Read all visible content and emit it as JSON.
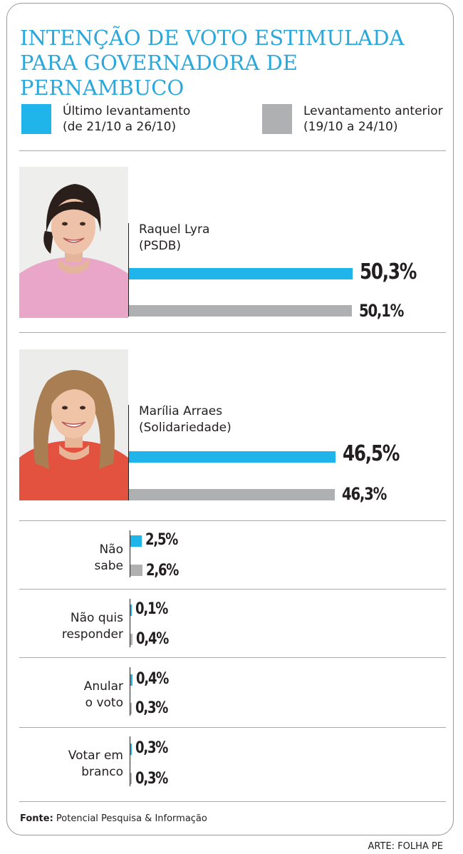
{
  "title": "INTENÇÃO DE VOTO ESTIMULADA PARA GOVERNADORA DE PERNAMBUCO",
  "legend": {
    "current": {
      "line1": "Último levantamento",
      "line2": "(de 21/10 a 26/10)",
      "color": "#1fb4ea"
    },
    "previous": {
      "line1": "Levantamento anterior",
      "line2": "(19/10 a 24/10)",
      "color": "#aeb0b2"
    }
  },
  "chart_data": {
    "type": "bar",
    "title": "INTENÇÃO DE VOTO ESTIMULADA PARA GOVERNADORA DE PERNAMBUCO",
    "unit": "%",
    "series": [
      {
        "name": "Último levantamento (de 21/10 a 26/10)",
        "values": [
          50.3,
          46.5,
          2.5,
          0.1,
          0.4,
          0.3
        ]
      },
      {
        "name": "Levantamento anterior (19/10 a 24/10)",
        "values": [
          50.1,
          46.3,
          2.6,
          0.4,
          0.3,
          0.3
        ]
      }
    ],
    "categories": [
      "Raquel Lyra (PSDB)",
      "Marília Arraes (Solidariedade)",
      "Não sabe",
      "Não quis responder",
      "Anular o voto",
      "Votar em branco"
    ],
    "candidates": [
      {
        "name": "Raquel Lyra",
        "party": "(PSDB)",
        "current": 50.3,
        "previous": 50.1,
        "current_label": "50,3%",
        "previous_label": "50,1%"
      },
      {
        "name": "Marília Arraes",
        "party": "(Solidariedade)",
        "current": 46.5,
        "previous": 46.3,
        "current_label": "46,5%",
        "previous_label": "46,3%"
      }
    ],
    "others": [
      {
        "line1": "Não",
        "line2": "sabe",
        "current": 2.5,
        "previous": 2.6,
        "current_label": "2,5%",
        "previous_label": "2,6%"
      },
      {
        "line1": "Não quis",
        "line2": "responder",
        "current": 0.1,
        "previous": 0.4,
        "current_label": "0,1%",
        "previous_label": "0,4%"
      },
      {
        "line1": "Anular",
        "line2": "o voto",
        "current": 0.4,
        "previous": 0.3,
        "current_label": "0,4%",
        "previous_label": "0,3%"
      },
      {
        "line1": "Votar em",
        "line2": "branco",
        "current": 0.3,
        "previous": 0.3,
        "current_label": "0,3%",
        "previous_label": "0,3%"
      }
    ]
  },
  "source": {
    "label": "Fonte:",
    "text": " Potencial Pesquisa & Informação"
  },
  "credit": "ARTE: FOLHA PE"
}
